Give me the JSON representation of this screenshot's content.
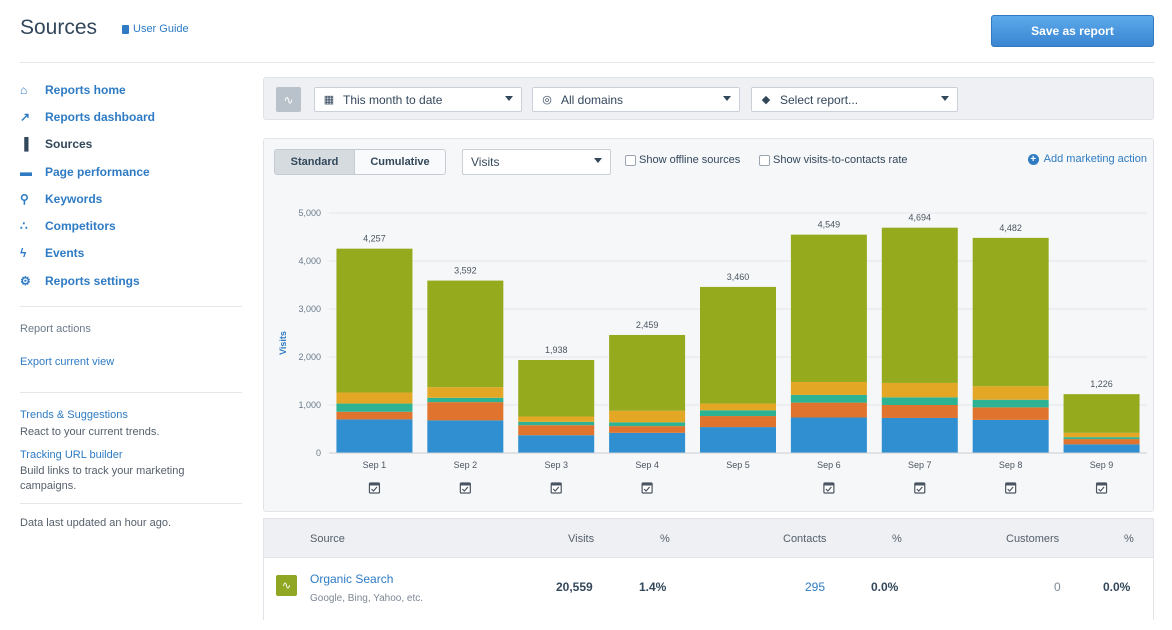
{
  "header": {
    "title": "Sources",
    "guide_label": "User Guide",
    "save_label": "Save as report"
  },
  "sidebar": {
    "nav": [
      {
        "label": "Reports home",
        "icon": "home-icon",
        "glyph": "⌂"
      },
      {
        "label": "Reports dashboard",
        "icon": "dashboard-icon",
        "glyph": "↗"
      },
      {
        "label": "Sources",
        "icon": "bar-chart-icon",
        "glyph": "▐"
      },
      {
        "label": "Page performance",
        "icon": "page-icon",
        "glyph": "▬"
      },
      {
        "label": "Keywords",
        "icon": "key-icon",
        "glyph": "⚲"
      },
      {
        "label": "Competitors",
        "icon": "competitors-icon",
        "glyph": "∴"
      },
      {
        "label": "Events",
        "icon": "lightning-icon",
        "glyph": "ϟ"
      },
      {
        "label": "Reports settings",
        "icon": "gear-icon",
        "glyph": "⚙"
      }
    ],
    "report_actions_label": "Report actions",
    "export_label": "Export current view",
    "trends_label": "Trends & Suggestions",
    "trends_text": "React to your current trends.",
    "tracking_label": "Tracking URL builder",
    "tracking_text": "Build links to track your marketing campaigns.",
    "updated_text": "Data last updated an hour ago."
  },
  "filters": {
    "date_range": "This month to date",
    "domains": "All domains",
    "report": "Select report..."
  },
  "chart_controls": {
    "standard_label": "Standard",
    "cumulative_label": "Cumulative",
    "metric": "Visits",
    "offline_label": "Show offline sources",
    "rate_label": "Show visits-to-contacts rate",
    "add_action_label": "Add marketing action"
  },
  "chart_data": {
    "type": "bar",
    "stacked": true,
    "ylabel": "Visits",
    "ylim": [
      0,
      5000
    ],
    "yticks": [
      "5,000",
      "4,000",
      "3,000",
      "2,000",
      "1,000",
      "0"
    ],
    "categories": [
      "Sep 1",
      "Sep 2",
      "Sep 3",
      "Sep 4",
      "Sep 5",
      "Sep 6",
      "Sep 7",
      "Sep 8",
      "Sep 9"
    ],
    "totals": [
      4257,
      3592,
      1938,
      2459,
      3460,
      4549,
      4694,
      4482,
      1226
    ],
    "total_labels": [
      "4,257",
      "3,592",
      "1,938",
      "2,459",
      "3,460",
      "4,549",
      "4,694",
      "4,482",
      "1,226"
    ],
    "series": [
      {
        "values": [
          700,
          680,
          370,
          420,
          540,
          740,
          730,
          690,
          180
        ],
        "color": "#2f8fd0"
      },
      {
        "values": [
          160,
          380,
          210,
          140,
          230,
          310,
          270,
          260,
          110
        ],
        "color": "#e0742e"
      },
      {
        "values": [
          170,
          90,
          70,
          80,
          120,
          160,
          160,
          160,
          40
        ],
        "color": "#2db394"
      },
      {
        "values": [
          230,
          220,
          110,
          240,
          140,
          270,
          300,
          280,
          90
        ],
        "color": "#e4a725"
      },
      {
        "values": [
          2997,
          2222,
          1178,
          1579,
          2430,
          3069,
          3234,
          3092,
          806
        ],
        "color": "#96aa1e"
      }
    ],
    "annotations": [
      true,
      true,
      true,
      true,
      false,
      true,
      true,
      true,
      true
    ],
    "grid": true
  },
  "table": {
    "headers": {
      "source": "Source",
      "visits": "Visits",
      "visits_pct": "%",
      "contacts": "Contacts",
      "contacts_pct": "%",
      "customers": "Customers",
      "customers_pct": "%"
    },
    "rows": [
      {
        "name": "Organic Search",
        "sub": "Google, Bing, Yahoo, etc.",
        "visits": "20,559",
        "visits_pct": "1.4%",
        "contacts": "295",
        "contacts_pct": "0.0%",
        "customers": "0",
        "customers_pct": "0.0%",
        "color": "#8fa722"
      }
    ]
  }
}
